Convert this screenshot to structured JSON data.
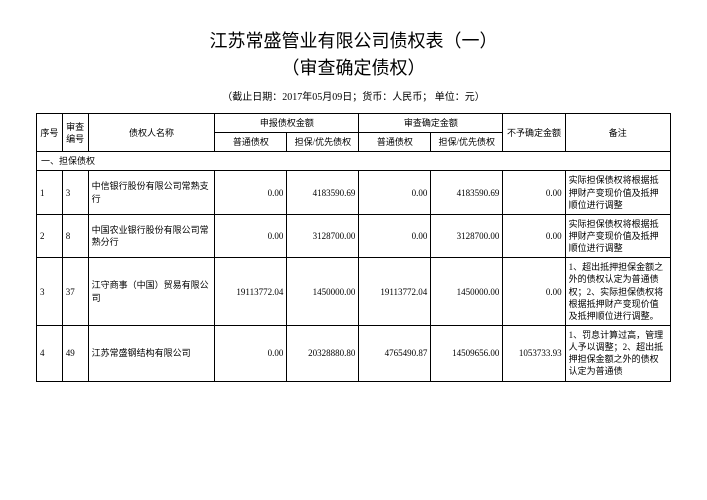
{
  "title": "江苏常盛管业有限公司债权表（一）",
  "subtitle": "（审查确定债权）",
  "meta": "（截止日期：2017年05月09日；货币：人民币；  单位：元）",
  "headers": {
    "seq": "序号",
    "audit_no": "审查编号",
    "creditor": "债权人名称",
    "declared_group": "申报债权金额",
    "confirmed_group": "审查确定金额",
    "undetermined": "不予确定金额",
    "note": "备注",
    "ordinary": "普通债权",
    "secured": "担保/优先债权"
  },
  "section1": "一、担保债权",
  "rows": [
    {
      "seq": "1",
      "audit_no": "3",
      "creditor": "中信银行股份有限公司常熟支行",
      "decl_ord": "0.00",
      "decl_sec": "4183590.69",
      "conf_ord": "0.00",
      "conf_sec": "4183590.69",
      "undet": "0.00",
      "note": "实际担保债权将根据抵押财产变现价值及抵押顺位进行调整"
    },
    {
      "seq": "2",
      "audit_no": "8",
      "creditor": "中国农业银行股份有限公司常熟分行",
      "decl_ord": "0.00",
      "decl_sec": "3128700.00",
      "conf_ord": "0.00",
      "conf_sec": "3128700.00",
      "undet": "0.00",
      "note": "实际担保债权将根据抵押财产变现价值及抵押顺位进行调整"
    },
    {
      "seq": "3",
      "audit_no": "37",
      "creditor": "江守商事（中国）贸易有限公司",
      "decl_ord": "19113772.04",
      "decl_sec": "1450000.00",
      "conf_ord": "19113772.04",
      "conf_sec": "1450000.00",
      "undet": "0.00",
      "note": "1、超出抵押担保金额之外的债权认定为普通债权；2、实际担保债权将根据抵押财产变现价值及抵押顺位进行调整。"
    },
    {
      "seq": "4",
      "audit_no": "49",
      "creditor": "江苏常盛钢结构有限公司",
      "decl_ord": "0.00",
      "decl_sec": "20328880.80",
      "conf_ord": "4765490.87",
      "conf_sec": "14509656.00",
      "undet": "1053733.93",
      "note": "1、罚息计算过高，管理人予以调整；2、超出抵押担保金额之外的债权认定为普通债"
    }
  ]
}
